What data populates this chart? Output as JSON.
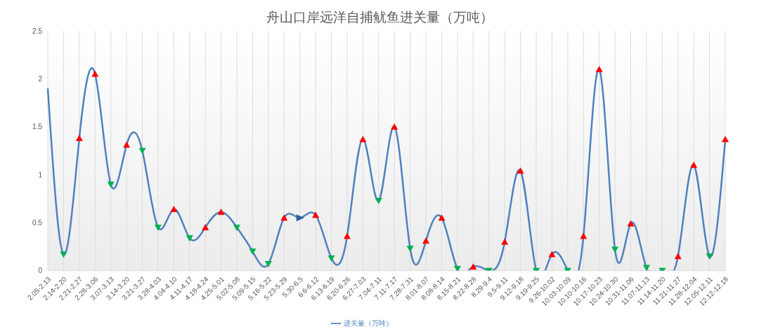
{
  "chart_data": {
    "type": "line",
    "title": "舟山口岸远洋自捕鱿鱼进关量（万吨）",
    "categories": [
      "2.05-2.13",
      "2.14-2.20",
      "2.21-2.27",
      "2.28-3.06",
      "3.07-3.13",
      "3.14-3.20",
      "3.21-3.27",
      "3.28-4.03",
      "4.04-4.10",
      "4.11-4.17",
      "4.18-4.24",
      "4.25-5.01",
      "5.02-5.08",
      "5.09-5.15",
      "5.16-5.22",
      "5.23-5.29",
      "5.30-6.5",
      "6.6-6.12",
      "6.13-6.19",
      "6.20-6.26",
      "6.27-7.03",
      "7.04-7.11",
      "7.11-7.17",
      "7.28-7.31",
      "8.01-8.07",
      "8.08-8.14",
      "8.15-8.21",
      "8.22-8.28",
      "8.29-9.4",
      "9.5-9.11",
      "9.12-9.18",
      "9.19-9.25",
      "9.26-10.02",
      "10.03-10.09",
      "10.10-10.16",
      "10.17-10.23",
      "10.24-10.30",
      "10.31-11.06",
      "11.07-11.13",
      "11.14-11.20",
      "11.21-11.27",
      "11.28-12.04",
      "12.05-12.11",
      "12.12-12.18"
    ],
    "series": [
      {
        "name": "进关量（万吨）",
        "color": "#4f81bd",
        "values": [
          1.9,
          0.17,
          1.38,
          2.05,
          0.9,
          1.31,
          1.25,
          0.45,
          0.64,
          0.34,
          0.45,
          0.61,
          0.45,
          0.2,
          0.07,
          0.55,
          0.55,
          0.58,
          0.13,
          0.36,
          1.37,
          0.73,
          1.5,
          0.23,
          0.31,
          0.55,
          0.02,
          0.04,
          0.0,
          0.3,
          1.04,
          0.0,
          0.17,
          0.0,
          0.36,
          2.1,
          0.22,
          0.49,
          0.03,
          0.0,
          0.15,
          1.1,
          0.15,
          1.37
        ],
        "colors": [
          null,
          "#00b050",
          "#ff0000",
          "#ff0000",
          "#00b050",
          "#ff0000",
          "#00b050",
          "#00b050",
          "#ff0000",
          "#00b050",
          "#ff0000",
          "#ff0000",
          "#00b050",
          "#00b050",
          "#00b050",
          "#ff0000",
          "#2e5f9a",
          "#ff0000",
          "#00b050",
          "#ff0000",
          "#ff0000",
          "#00b050",
          "#ff0000",
          "#00b050",
          "#ff0000",
          "#ff0000",
          "#00b050",
          "#ff0000",
          "#00b050",
          "#ff0000",
          "#ff0000",
          "#00b050",
          "#ff0000",
          "#00b050",
          "#ff0000",
          "#ff0000",
          "#00b050",
          "#ff0000",
          "#00b050",
          "#00b050",
          "#ff0000",
          "#ff0000",
          "#00b050",
          "#ff0000"
        ]
      }
    ],
    "ylim": [
      0,
      2.5
    ],
    "yticks": [
      0,
      0.5,
      1,
      1.5,
      2,
      2.5
    ],
    "grid": "x",
    "legend": "bottom",
    "marker": "triangle",
    "line_style": "solid"
  }
}
